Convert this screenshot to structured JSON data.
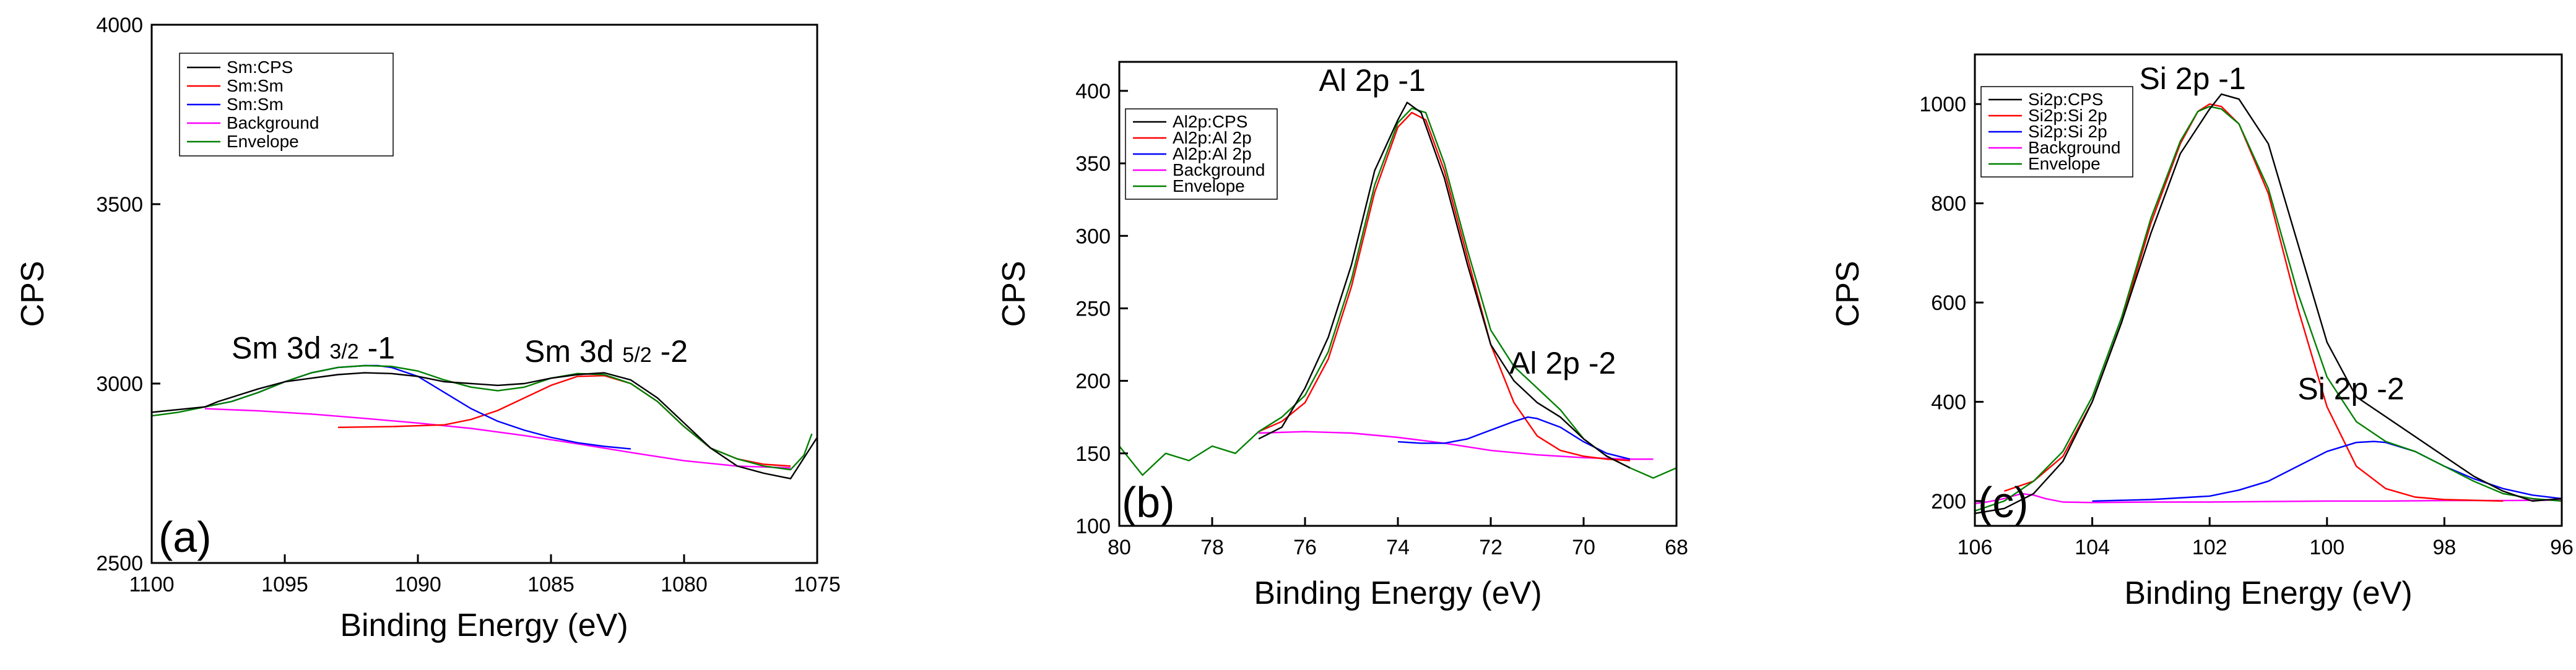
{
  "chart_data": [
    {
      "type": "line",
      "panel_label": "(a)",
      "xlabel": "Binding Energy (eV)",
      "ylabel": "CPS",
      "xlim": [
        1100,
        1075
      ],
      "ylim": [
        2500,
        4000
      ],
      "xticks": [
        1100,
        1095,
        1090,
        1085,
        1080,
        1075
      ],
      "yticks": [
        2500,
        3000,
        3500,
        4000
      ],
      "legend": {
        "position": "top-left",
        "entries": [
          {
            "label": "Sm:CPS",
            "color": "#000000"
          },
          {
            "label": "Sm:Sm",
            "color": "#ff0000"
          },
          {
            "label": "Sm:Sm",
            "color": "#0000ff"
          },
          {
            "label": "Background",
            "color": "#ff00ff"
          },
          {
            "label": "Envelope",
            "color": "#008000"
          }
        ]
      },
      "annotations": [
        {
          "text": "Sm 3d",
          "sub": "3/2",
          "suffix": " -1",
          "x": 1097,
          "y": 3070
        },
        {
          "text": "Sm 3d",
          "sub": "5/2",
          "suffix": " -2",
          "x": 1086,
          "y": 3060
        }
      ],
      "series": [
        {
          "name": "Sm:CPS",
          "color": "#000000",
          "x": [
            1100,
            1098,
            1097.5,
            1096,
            1095,
            1094,
            1093,
            1092,
            1091,
            1090,
            1089,
            1088,
            1087,
            1086,
            1085,
            1084,
            1083,
            1082,
            1081,
            1080,
            1079,
            1078,
            1077,
            1076,
            1075
          ],
          "y": [
            2920,
            2935,
            2950,
            2985,
            3005,
            3015,
            3025,
            3030,
            3028,
            3020,
            3005,
            3000,
            2995,
            3000,
            3015,
            3025,
            3030,
            3010,
            2960,
            2890,
            2820,
            2770,
            2750,
            2735,
            2850
          ]
        },
        {
          "name": "Sm:Sm",
          "color": "#ff0000",
          "x": [
            1093,
            1091,
            1089,
            1088,
            1087,
            1086,
            1085,
            1084,
            1083,
            1082,
            1081,
            1080,
            1079,
            1078,
            1077,
            1076
          ],
          "y": [
            2878,
            2880,
            2885,
            2900,
            2925,
            2960,
            2995,
            3020,
            3022,
            3000,
            2950,
            2880,
            2820,
            2790,
            2775,
            2770
          ]
        },
        {
          "name": "Sm:Sm",
          "color": "#0000ff",
          "x": [
            1098,
            1097,
            1096,
            1095,
            1094,
            1093,
            1092,
            1091.5,
            1091,
            1090,
            1089,
            1088,
            1087,
            1086,
            1085,
            1084,
            1083,
            1082
          ],
          "y": [
            2935,
            2950,
            2975,
            3005,
            3030,
            3045,
            3050,
            3050,
            3045,
            3020,
            2975,
            2930,
            2895,
            2870,
            2850,
            2835,
            2825,
            2818
          ]
        },
        {
          "name": "Background",
          "color": "#ff00ff",
          "x": [
            1098,
            1096,
            1094,
            1092,
            1090,
            1088,
            1086,
            1084,
            1082,
            1080,
            1078,
            1076
          ],
          "y": [
            2930,
            2924,
            2915,
            2903,
            2890,
            2875,
            2855,
            2832,
            2808,
            2785,
            2770,
            2765
          ]
        },
        {
          "name": "Envelope",
          "color": "#008000",
          "x": [
            1100,
            1099,
            1098,
            1097,
            1096,
            1095,
            1094,
            1093,
            1092,
            1091,
            1090,
            1089,
            1088,
            1087,
            1086,
            1085,
            1084,
            1083,
            1082,
            1081,
            1080,
            1079,
            1078,
            1077,
            1076,
            1075.5,
            1075.2
          ],
          "y": [
            2910,
            2920,
            2935,
            2950,
            2975,
            3005,
            3030,
            3045,
            3050,
            3048,
            3035,
            3010,
            2990,
            2980,
            2990,
            3015,
            3028,
            3025,
            3000,
            2950,
            2880,
            2820,
            2790,
            2770,
            2760,
            2800,
            2860
          ]
        }
      ]
    },
    {
      "type": "line",
      "panel_label": "(b)",
      "xlabel": "Binding Energy (eV)",
      "ylabel": "CPS",
      "xlim": [
        80,
        68
      ],
      "ylim": [
        100,
        420
      ],
      "xticks": [
        80,
        78,
        76,
        74,
        72,
        70,
        68
      ],
      "yticks": [
        100,
        150,
        200,
        250,
        300,
        350,
        400
      ],
      "legend": {
        "position": "top-left",
        "entries": [
          {
            "label": "Al2p:CPS",
            "color": "#000000"
          },
          {
            "label": "Al2p:Al 2p",
            "color": "#ff0000"
          },
          {
            "label": "Al2p:Al 2p",
            "color": "#0000ff"
          },
          {
            "label": "Background",
            "color": "#ff00ff"
          },
          {
            "label": "Envelope",
            "color": "#008000"
          }
        ]
      },
      "annotations": [
        {
          "text": "Al 2p -1",
          "x": 75.7,
          "y": 400
        },
        {
          "text": "Al 2p -2",
          "x": 71.6,
          "y": 205
        }
      ],
      "series": [
        {
          "name": "Al2p:CPS",
          "color": "#000000",
          "x": [
            77,
            76.5,
            76,
            75.5,
            75,
            74.5,
            74,
            73.8,
            73.5,
            73,
            72.5,
            72,
            71.5,
            71,
            70.5,
            70,
            69.5,
            69
          ],
          "y": [
            160,
            168,
            195,
            230,
            280,
            345,
            380,
            392,
            385,
            340,
            280,
            225,
            200,
            185,
            175,
            160,
            148,
            140
          ]
        },
        {
          "name": "Al2p:Al 2p",
          "color": "#ff0000",
          "x": [
            77,
            76.5,
            76,
            75.5,
            75,
            74.5,
            74,
            73.7,
            73.4,
            73,
            72.5,
            72,
            71.5,
            71,
            70.5,
            70,
            69.5,
            69
          ],
          "y": [
            165,
            172,
            185,
            215,
            265,
            330,
            375,
            385,
            380,
            345,
            285,
            225,
            185,
            162,
            152,
            148,
            146,
            145
          ]
        },
        {
          "name": "Al2p:Al 2p",
          "color": "#0000ff",
          "x": [
            74,
            73.5,
            73,
            72.5,
            72,
            71.5,
            71.2,
            71,
            70.5,
            70,
            69.5,
            69
          ],
          "y": [
            158,
            157,
            157,
            160,
            166,
            172,
            175,
            174,
            168,
            158,
            150,
            146
          ]
        },
        {
          "name": "Background",
          "color": "#ff00ff",
          "x": [
            77,
            76,
            75,
            74,
            73,
            72,
            71,
            70,
            69,
            68.5
          ],
          "y": [
            164,
            165,
            164,
            161,
            157,
            152,
            149,
            147,
            146,
            146
          ]
        },
        {
          "name": "Envelope",
          "color": "#008000",
          "x": [
            80,
            79.5,
            79,
            78.5,
            78,
            77.5,
            77,
            76.5,
            76,
            75.5,
            75,
            74.5,
            74,
            73.7,
            73.4,
            73,
            72.5,
            72,
            71.5,
            71,
            70.5,
            70,
            69.5,
            69,
            68.5,
            68
          ],
          "y": [
            155,
            135,
            150,
            145,
            155,
            150,
            165,
            175,
            190,
            220,
            270,
            335,
            378,
            388,
            385,
            350,
            290,
            235,
            210,
            195,
            180,
            160,
            148,
            140,
            133,
            140
          ]
        }
      ]
    },
    {
      "type": "line",
      "panel_label": "(c)",
      "xlabel": "Binding Energy (eV)",
      "ylabel": "CPS",
      "xlim": [
        106,
        96
      ],
      "ylim": [
        150,
        1100
      ],
      "xticks": [
        106,
        104,
        102,
        100,
        98,
        96
      ],
      "yticks": [
        200,
        400,
        600,
        800,
        1000
      ],
      "legend": {
        "position": "top-left",
        "entries": [
          {
            "label": "Si2p:CPS",
            "color": "#000000"
          },
          {
            "label": "Si2p:Si 2p",
            "color": "#ff0000"
          },
          {
            "label": "Si2p:Si 2p",
            "color": "#0000ff"
          },
          {
            "label": "Background",
            "color": "#ff00ff"
          },
          {
            "label": "Envelope",
            "color": "#008000"
          }
        ]
      },
      "annotations": [
        {
          "text": "Si 2p -1",
          "x": 103.2,
          "y": 1030
        },
        {
          "text": "Si 2p -2",
          "x": 100.5,
          "y": 405
        }
      ],
      "series": [
        {
          "name": "Si2p:CPS",
          "color": "#000000",
          "x": [
            106,
            105.5,
            105,
            104.5,
            104,
            103.5,
            103,
            102.5,
            102,
            101.8,
            101.5,
            101,
            100.5,
            100,
            99.5,
            99,
            98.5,
            98,
            97.5,
            97,
            96.5,
            96
          ],
          "y": [
            175,
            185,
            215,
            280,
            400,
            560,
            740,
            900,
            990,
            1020,
            1010,
            920,
            720,
            520,
            410,
            370,
            330,
            290,
            250,
            220,
            200,
            205
          ]
        },
        {
          "name": "Si2p:Si 2p",
          "color": "#ff0000",
          "x": [
            105.5,
            105,
            104.5,
            104,
            103.5,
            103,
            102.5,
            102.2,
            102,
            101.8,
            101.5,
            101,
            100.5,
            100,
            99.5,
            99,
            98.5,
            98,
            97
          ],
          "y": [
            220,
            240,
            290,
            400,
            560,
            760,
            920,
            985,
            1000,
            995,
            960,
            820,
            590,
            390,
            270,
            225,
            208,
            203,
            200
          ]
        },
        {
          "name": "Si2p:Si 2p",
          "color": "#0000ff",
          "x": [
            104,
            103,
            102,
            101.5,
            101,
            100.5,
            100,
            99.5,
            99.2,
            99,
            98.5,
            98,
            97.5,
            97,
            96.5,
            96
          ],
          "y": [
            200,
            203,
            210,
            222,
            240,
            270,
            300,
            318,
            320,
            318,
            300,
            270,
            245,
            225,
            212,
            205
          ]
        },
        {
          "name": "Background",
          "color": "#ff00ff",
          "x": [
            106,
            105.8,
            105.5,
            105.2,
            105,
            104.8,
            104.5,
            104,
            103,
            102,
            101,
            100,
            99,
            98,
            97,
            96
          ],
          "y": [
            195,
            198,
            205,
            215,
            212,
            205,
            198,
            197,
            198,
            198,
            199,
            200,
            200,
            201,
            201,
            202
          ]
        },
        {
          "name": "Envelope",
          "color": "#008000",
          "x": [
            106,
            105.5,
            105,
            104.5,
            104,
            103.5,
            103,
            102.5,
            102.2,
            102,
            101.8,
            101.5,
            101,
            100.5,
            100,
            99.5,
            99,
            98.5,
            98,
            97.5,
            97,
            96.5,
            96
          ],
          "y": [
            180,
            200,
            240,
            300,
            410,
            570,
            770,
            925,
            985,
            995,
            990,
            960,
            830,
            620,
            450,
            360,
            320,
            300,
            270,
            240,
            215,
            205,
            200
          ]
        }
      ]
    }
  ]
}
